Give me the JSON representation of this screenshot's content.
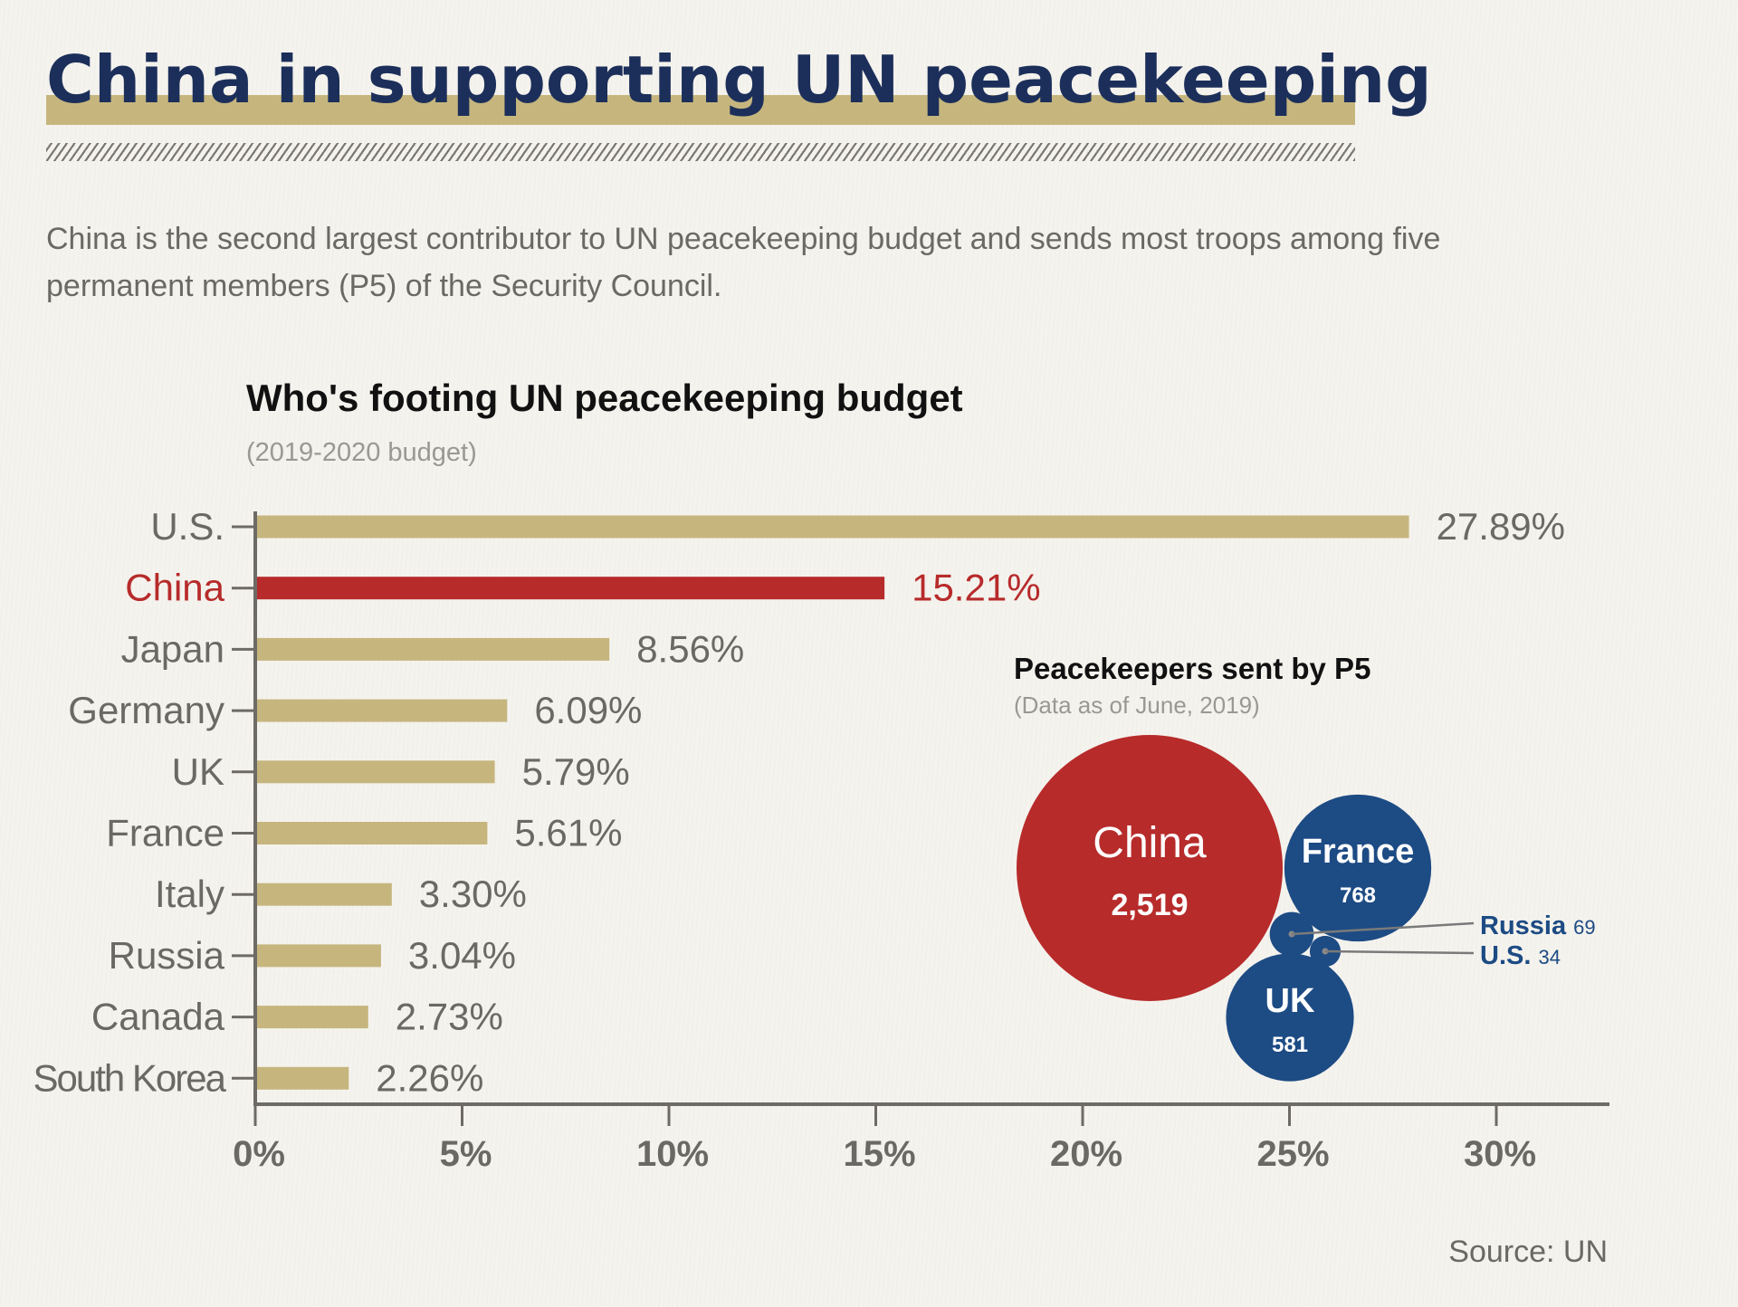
{
  "header": {
    "title": "China in supporting UN peacekeeping",
    "intro": "China is the second largest contributor to UN peacekeeping budget and sends most troops among five permanent members (P5) of the Security Council."
  },
  "colors": {
    "gold": "#c6b67e",
    "red": "#b72b2b",
    "navy": "#1b2f5b",
    "blue": "#1d4b84",
    "gray": "#6b6964"
  },
  "source": "Source: UN",
  "chart_data": [
    {
      "type": "bar",
      "orientation": "horizontal",
      "title": "Who's footing UN peacekeeping budget",
      "subtitle": "(2019-2020 budget)",
      "categories": [
        "U.S.",
        "China",
        "Japan",
        "Germany",
        "UK",
        "France",
        "Italy",
        "Russia",
        "Canada",
        "South Korea"
      ],
      "values": [
        27.89,
        15.21,
        8.56,
        6.09,
        5.79,
        5.61,
        3.3,
        3.04,
        2.73,
        2.26
      ],
      "labels": [
        "27.89%",
        "15.21%",
        "8.56%",
        "6.09%",
        "5.79%",
        "5.61%",
        "3.30%",
        "3.04%",
        "2.73%",
        "2.26%"
      ],
      "highlight": "China",
      "xlabel": "",
      "ylabel": "",
      "xlim": [
        0,
        33
      ],
      "xticks": [
        0,
        5,
        10,
        15,
        20,
        25,
        30
      ],
      "xtick_labels": [
        "0%",
        "5%",
        "10%",
        "15%",
        "20%",
        "25%",
        "30%"
      ],
      "grid": false
    },
    {
      "type": "bubble",
      "title": "Peacekeepers sent by P5",
      "subtitle": "(Data as of June, 2019)",
      "items": [
        {
          "name": "China",
          "value": 2519,
          "label": "2,519",
          "color": "red"
        },
        {
          "name": "France",
          "value": 768,
          "label": "768",
          "color": "blue"
        },
        {
          "name": "UK",
          "value": 581,
          "label": "581",
          "color": "blue"
        },
        {
          "name": "Russia",
          "value": 69,
          "label": "69",
          "color": "blue",
          "callout": true
        },
        {
          "name": "U.S.",
          "value": 34,
          "label": "34",
          "color": "blue",
          "callout": true
        }
      ]
    }
  ]
}
